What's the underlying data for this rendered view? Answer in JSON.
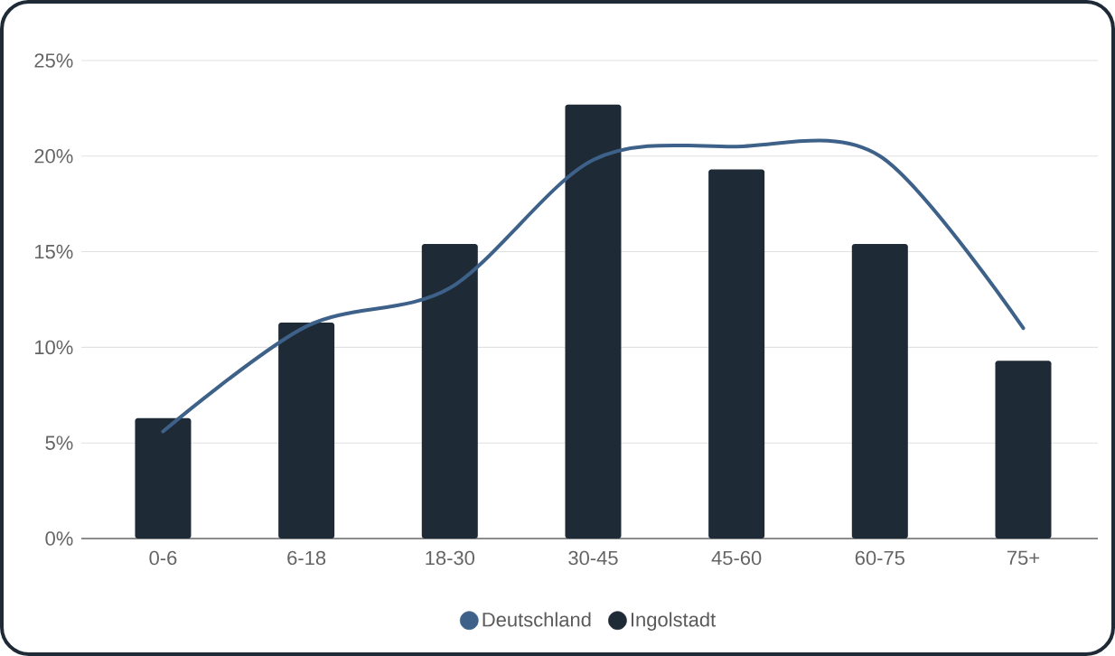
{
  "chart_data": {
    "type": "bar",
    "categories": [
      "0-6",
      "6-18",
      "18-30",
      "30-45",
      "45-60",
      "60-75",
      "75+"
    ],
    "series": [
      {
        "name": "Deutschland",
        "type": "line",
        "color": "#3d6189",
        "values": [
          5.6,
          11.1,
          13.1,
          19.8,
          20.5,
          20.0,
          11.0
        ]
      },
      {
        "name": "Ingolstadt",
        "color": "#1f2a37",
        "values": [
          6.3,
          11.3,
          15.4,
          22.7,
          19.3,
          15.4,
          9.3
        ]
      }
    ],
    "ylim": [
      0,
      25
    ],
    "yticks": [
      {
        "value": 0,
        "label": "0%"
      },
      {
        "value": 5,
        "label": "5%"
      },
      {
        "value": 10,
        "label": "10%"
      },
      {
        "value": 15,
        "label": "15%"
      },
      {
        "value": 20,
        "label": "20%"
      },
      {
        "value": 25,
        "label": "25%"
      }
    ],
    "grid": "y",
    "legend": "bottom",
    "marker": "none",
    "line_style": "solid"
  }
}
